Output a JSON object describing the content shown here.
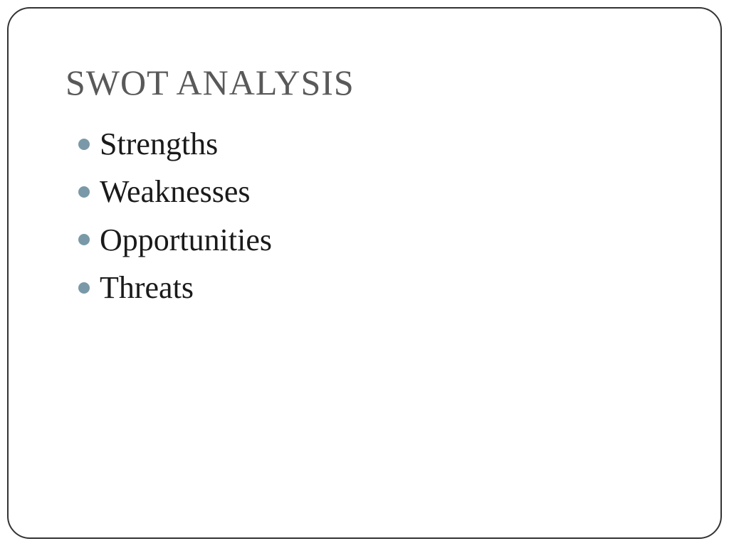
{
  "slide": {
    "title": "SWOT ANALYSIS",
    "title_color": "#595959",
    "title_fontsize": 50,
    "bullets": [
      {
        "text": "Strengths"
      },
      {
        "text": "Weaknesses"
      },
      {
        "text": "Opportunities"
      },
      {
        "text": "Threats"
      }
    ],
    "bullet_text_color": "#1a1a1a",
    "bullet_text_fontsize": 44,
    "bullet_dot_color": "#7a99a8",
    "bullet_dot_size": 16,
    "frame_border_color": "#333333",
    "frame_border_radius": 32,
    "background_color": "#ffffff"
  }
}
